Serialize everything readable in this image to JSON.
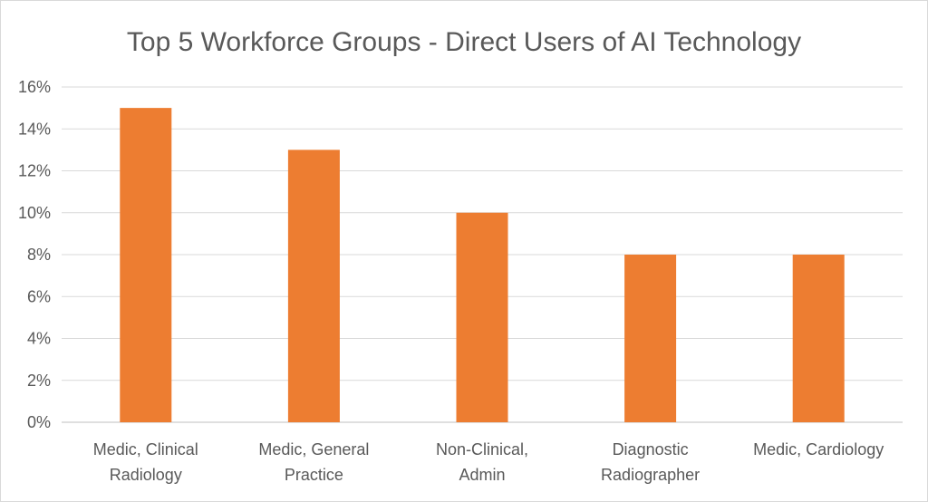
{
  "chart_data": {
    "type": "bar",
    "title": "Top 5 Workforce Groups - Direct Users of AI Technology",
    "categories": [
      [
        "Medic, Clinical",
        "Radiology"
      ],
      [
        "Medic, General",
        "Practice"
      ],
      [
        "Non-Clinical,",
        "Admin"
      ],
      [
        "Diagnostic",
        "Radiographer"
      ],
      [
        "Medic, Cardiology"
      ]
    ],
    "values": [
      15,
      13,
      10,
      8,
      8
    ],
    "ylim": [
      0,
      16
    ],
    "yticks": [
      0,
      2,
      4,
      6,
      8,
      10,
      12,
      14,
      16
    ],
    "ytick_labels": [
      "0%",
      "2%",
      "4%",
      "6%",
      "8%",
      "10%",
      "12%",
      "14%",
      "16%"
    ],
    "xlabel": "",
    "ylabel": "",
    "grid": true,
    "legend": "none",
    "bar_color": "#ED7D31"
  }
}
